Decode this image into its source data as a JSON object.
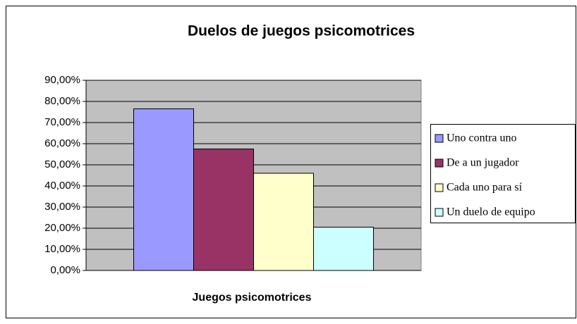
{
  "chart_data": {
    "type": "bar",
    "title": "Duelos de juegos psicomotrices",
    "xlabel": "Juegos psicomotrices",
    "series": [
      {
        "name": "Uno contra uno",
        "color": "#9999ff",
        "values": [
          76.5
        ]
      },
      {
        "name": "De a un jugador",
        "color": "#993366",
        "values": [
          57.5
        ]
      },
      {
        "name": "Cada uno para sí",
        "color": "#ffffcc",
        "values": [
          46
        ]
      },
      {
        "name": "Un duelo de equipo",
        "color": "#ccffff",
        "values": [
          20.5
        ]
      }
    ],
    "ylim": [
      0,
      90
    ],
    "yticks": [
      {
        "value": 0,
        "label": "0,00%"
      },
      {
        "value": 10,
        "label": "10,00%"
      },
      {
        "value": 20,
        "label": "20,00%"
      },
      {
        "value": 30,
        "label": "30,00%"
      },
      {
        "value": 40,
        "label": "40,00%"
      },
      {
        "value": 50,
        "label": "50,00%"
      },
      {
        "value": 60,
        "label": "60,00%"
      },
      {
        "value": 70,
        "label": "70,00%"
      },
      {
        "value": 80,
        "label": "80,00%"
      },
      {
        "value": 90,
        "label": "90,00%"
      }
    ],
    "grid": true,
    "legend": "right"
  }
}
